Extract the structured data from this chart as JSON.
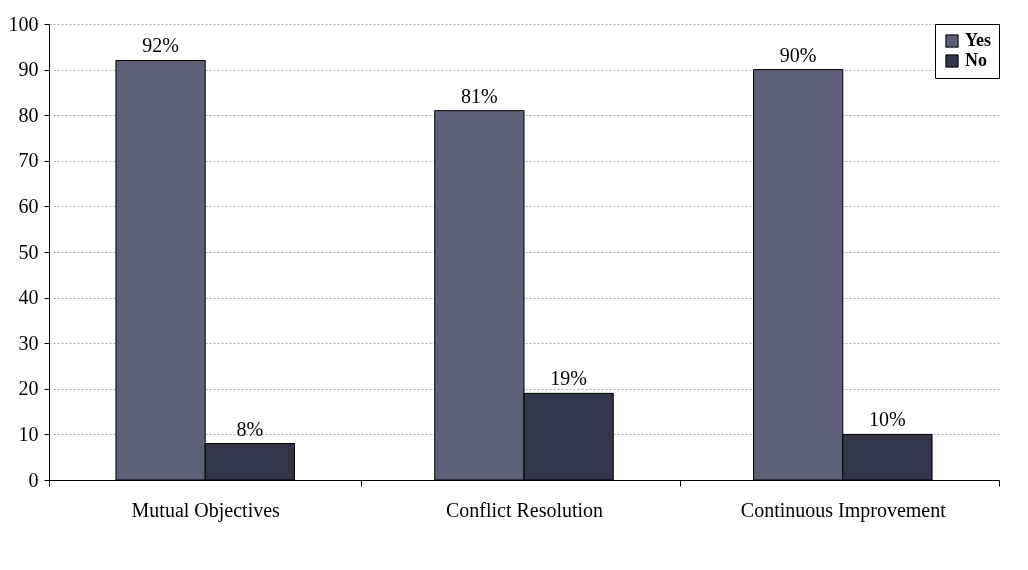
{
  "chart_data": {
    "type": "bar",
    "categories": [
      "Mutual Objectives",
      "Conflict Resolution",
      "Continuous Improvement"
    ],
    "series": [
      {
        "name": "Yes",
        "color": "#5f6078",
        "values": [
          92,
          81,
          90
        ],
        "value_labels": [
          "92%",
          "81%",
          "90%"
        ]
      },
      {
        "name": "No",
        "color": "#35354a",
        "values": [
          8,
          19,
          10
        ],
        "value_labels": [
          "8%",
          "19%",
          "10%"
        ]
      }
    ],
    "ylim": [
      0,
      100
    ],
    "yticks": [
      0,
      10,
      20,
      30,
      40,
      50,
      60,
      70,
      80,
      90,
      100
    ],
    "grid": "y",
    "legend": "top right"
  }
}
